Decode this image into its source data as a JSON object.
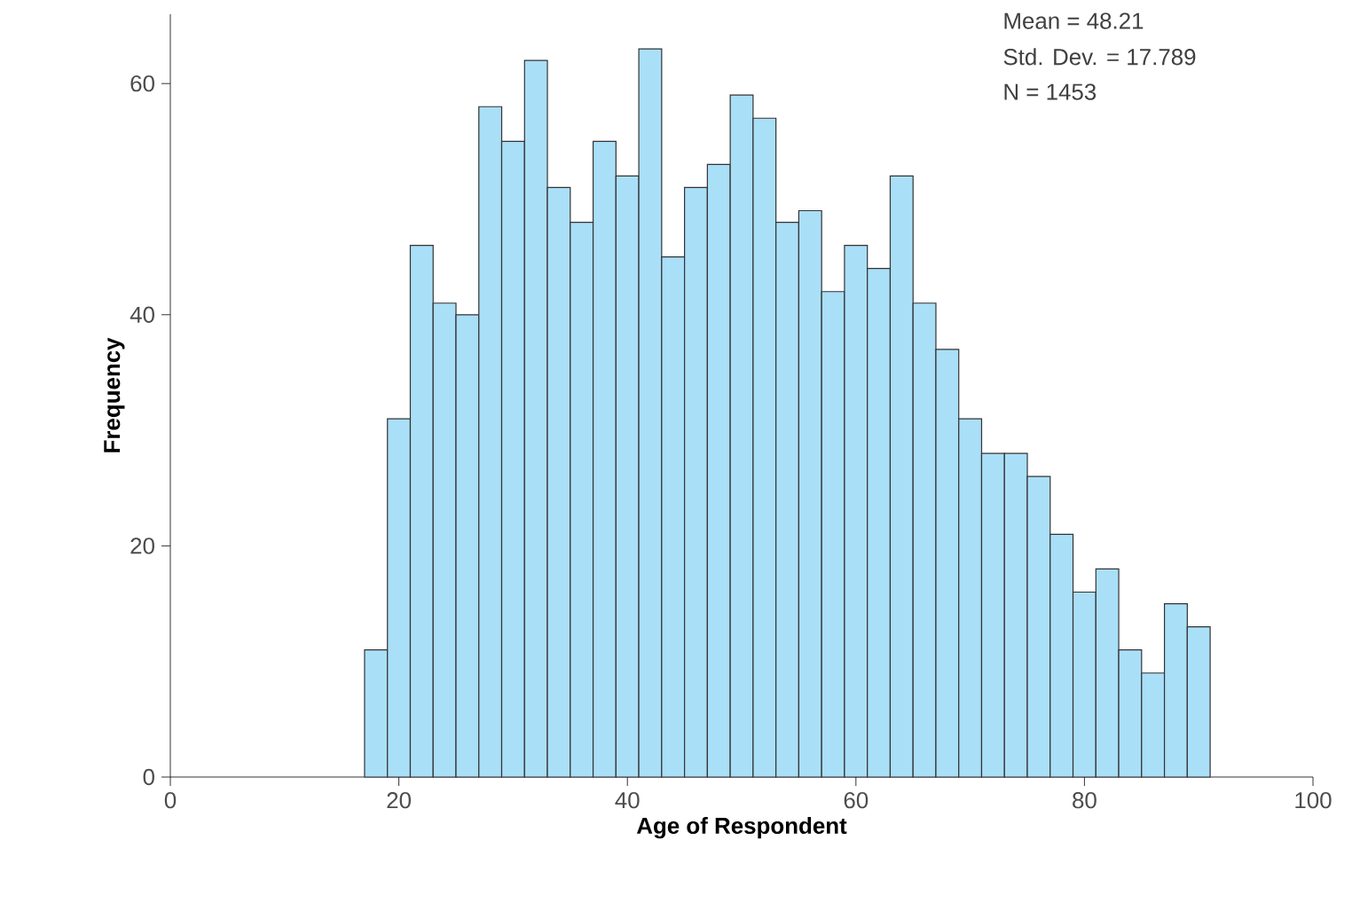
{
  "chart_data": {
    "type": "histogram",
    "xlabel": "Age of Respondent",
    "ylabel": "Frequency",
    "annotations": [
      "Mean = 48.21",
      "Std. Dev. = 17.789",
      "N = 1453"
    ],
    "bins": [
      17,
      19,
      21,
      23,
      25,
      27,
      29,
      31,
      33,
      35,
      37,
      39,
      41,
      43,
      45,
      47,
      49,
      51,
      53,
      55,
      57,
      59,
      61,
      63,
      65,
      67,
      69,
      71,
      73,
      75,
      77,
      79,
      81,
      83,
      85,
      87,
      89,
      91
    ],
    "values": [
      11,
      31,
      46,
      41,
      40,
      58,
      55,
      62,
      51,
      48,
      55,
      52,
      63,
      45,
      51,
      53,
      59,
      57,
      48,
      49,
      42,
      46,
      44,
      52,
      41,
      37,
      31,
      28,
      28,
      26,
      21,
      16,
      18,
      11,
      9,
      15,
      13
    ],
    "color": "#aadff8",
    "xlim": [
      0,
      100
    ],
    "xticks": [
      0,
      20,
      40,
      60,
      80,
      100
    ],
    "ylim": [
      0,
      66
    ],
    "yticks": [
      0,
      20,
      40,
      60
    ]
  }
}
